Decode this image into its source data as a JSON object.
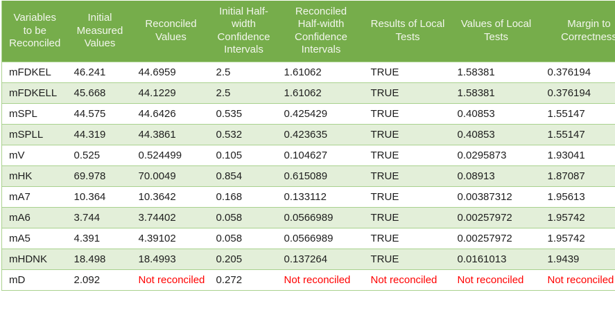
{
  "colors": {
    "header_bg": "#76ad4b",
    "header_text": "#f2f6ec",
    "banded_row_bg": "#e3efd9",
    "plain_row_bg": "#ffffff",
    "border": "#a9d18e",
    "body_text": "#1d1d1d",
    "not_reconciled_text": "#ff0000"
  },
  "table": {
    "columns": [
      {
        "label": "Variables\nto be\nReconciled"
      },
      {
        "label": "Initial\nMeasured\nValues"
      },
      {
        "label": "Reconciled\nValues"
      },
      {
        "label": "Initial Half-\nwidth\nConfidence\nIntervals"
      },
      {
        "label": "Reconciled\nHalf-width\nConfidence\nIntervals"
      },
      {
        "label": "Results of Local\nTests"
      },
      {
        "label": "Values of Local\nTests"
      },
      {
        "label": "Margin to\nCorrectness"
      }
    ],
    "not_reconciled_label": "Not reconciled",
    "rows": [
      [
        "mFDKEL",
        "46.241",
        "44.6959",
        "2.5",
        "1.61062",
        "TRUE",
        "1.58381",
        "0.376194"
      ],
      [
        "mFDKELL",
        "45.668",
        "44.1229",
        "2.5",
        "1.61062",
        "TRUE",
        "1.58381",
        "0.376194"
      ],
      [
        "mSPL",
        "44.575",
        "44.6426",
        "0.535",
        "0.425429",
        "TRUE",
        "0.40853",
        "1.55147"
      ],
      [
        "mSPLL",
        "44.319",
        "44.3861",
        "0.532",
        "0.423635",
        "TRUE",
        "0.40853",
        "1.55147"
      ],
      [
        "mV",
        "0.525",
        "0.524499",
        "0.105",
        "0.104627",
        "TRUE",
        "0.0295873",
        "1.93041"
      ],
      [
        "mHK",
        "69.978",
        "70.0049",
        "0.854",
        "0.615089",
        "TRUE",
        "0.08913",
        "1.87087"
      ],
      [
        "mA7",
        "10.364",
        "10.3642",
        "0.168",
        "0.133112",
        "TRUE",
        "0.00387312",
        "1.95613"
      ],
      [
        "mA6",
        "3.744",
        "3.74402",
        "0.058",
        "0.0566989",
        "TRUE",
        "0.00257972",
        "1.95742"
      ],
      [
        "mA5",
        "4.391",
        "4.39102",
        "0.058",
        "0.0566989",
        "TRUE",
        "0.00257972",
        "1.95742"
      ],
      [
        "mHDNK",
        "18.498",
        "18.4993",
        "0.205",
        "0.137264",
        "TRUE",
        "0.0161013",
        "1.9439"
      ],
      [
        "mD",
        "2.092",
        "Not reconciled",
        "0.272",
        "Not reconciled",
        "Not reconciled",
        "Not reconciled",
        "Not reconciled"
      ]
    ]
  }
}
